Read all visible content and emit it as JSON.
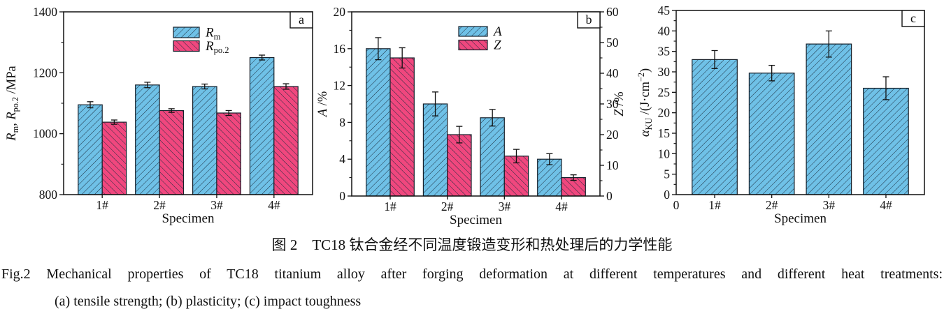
{
  "figure": {
    "caption_zh": "图 2　TC18 钛合金经不同温度锻造变形和热处理后的力学性能",
    "caption_en_line1": "Fig.2  Mechanical properties of TC18 titanium alloy after forging deformation at different temperatures and different heat treatments:",
    "caption_en_line2": "(a) tensile strength; (b) plasticity; (c) impact toughness"
  },
  "colors": {
    "bar_blue": "#6fc1e7",
    "bar_pink": "#f0477e",
    "hatch_line": "#1d2e3f",
    "axis": "#111111"
  },
  "chart_data": [
    {
      "type": "bar",
      "panel_label": "a",
      "categories": [
        "1#",
        "2#",
        "3#",
        "4#"
      ],
      "xlabel": "Specimen",
      "ylabel_parts": [
        [
          "R",
          "i"
        ],
        [
          "m",
          "sub"
        ],
        [
          ", ",
          "n"
        ],
        [
          "R",
          "i"
        ],
        [
          "po.2",
          "sub"
        ],
        [
          " /MPa",
          "n"
        ]
      ],
      "ylim": [
        800,
        1400
      ],
      "ytick_step": 200,
      "yminor_step": 100,
      "legend": true,
      "series": [
        {
          "name": "Rm",
          "label_parts": [
            [
              "R",
              "i"
            ],
            [
              "m",
              "sub"
            ]
          ],
          "color": "bar_blue",
          "hatch": "fwd",
          "values": [
            1095,
            1160,
            1155,
            1250
          ],
          "errors": [
            10,
            9,
            8,
            8
          ]
        },
        {
          "name": "Rpo.2",
          "label_parts": [
            [
              "R",
              "i"
            ],
            [
              "po.2",
              "sub"
            ]
          ],
          "color": "bar_pink",
          "hatch": "bwd",
          "values": [
            1038,
            1076,
            1068,
            1155
          ],
          "errors": [
            7,
            6,
            8,
            9
          ]
        }
      ]
    },
    {
      "type": "bar",
      "panel_label": "b",
      "categories": [
        "1#",
        "2#",
        "3#",
        "4#"
      ],
      "xlabel": "Specimen",
      "ylabel_parts": [
        [
          "A",
          "i"
        ],
        [
          " /%",
          "n"
        ]
      ],
      "ylim": [
        0,
        20
      ],
      "ytick_step": 4,
      "yminor_step": 2,
      "y2label_parts": [
        [
          "Z",
          "i"
        ],
        [
          " /%",
          "n"
        ]
      ],
      "y2lim": [
        0,
        60
      ],
      "y2tick_step": 10,
      "y2minor_step": 5,
      "legend": true,
      "series": [
        {
          "name": "A",
          "label_parts": [
            [
              "A",
              "i"
            ]
          ],
          "color": "bar_blue",
          "hatch": "fwd",
          "values": [
            16,
            10,
            8.5,
            4
          ],
          "errors": [
            1.2,
            1.3,
            0.9,
            0.6
          ]
        },
        {
          "name": "Z",
          "label_parts": [
            [
              "Z",
              "i"
            ]
          ],
          "color": "bar_pink",
          "hatch": "bwd",
          "axis": "y2",
          "values": [
            45,
            20,
            13,
            6
          ],
          "errors": [
            3.3,
            2.7,
            2.2,
            0.9
          ]
        }
      ]
    },
    {
      "type": "bar",
      "panel_label": "c",
      "categories": [
        "1#",
        "2#",
        "3#",
        "4#"
      ],
      "x_origin_label": "0",
      "xlabel": "Specimen",
      "ylabel_parts": [
        [
          "α",
          "i"
        ],
        [
          "KU",
          "sub"
        ],
        [
          " /(J·cm",
          "n"
        ],
        [
          "−2",
          "sup"
        ],
        [
          ")",
          "n"
        ]
      ],
      "ylim": [
        0,
        45
      ],
      "ytick_step": 5,
      "yminor_step": 2.5,
      "legend": false,
      "series": [
        {
          "name": "aKU",
          "color": "bar_blue",
          "hatch": "fwd",
          "values": [
            33,
            29.7,
            36.8,
            26
          ],
          "errors": [
            2.2,
            1.9,
            3.2,
            2.8
          ]
        }
      ]
    }
  ]
}
